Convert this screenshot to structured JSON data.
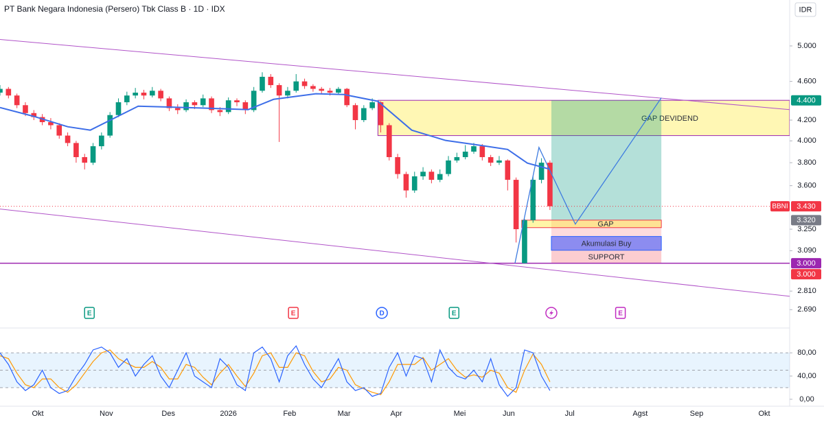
{
  "chart_data": {
    "type": "candlestick",
    "title": "PT Bank Negara Indonesia (Persero) Tbk Class B · 1D · IDX",
    "currency": "IDR",
    "log_scale": true,
    "xlim": [
      0,
      280
    ],
    "ylim": [
      2610,
      5570
    ],
    "xticks": [
      {
        "value": 13.4,
        "label": "Okt"
      },
      {
        "value": 37.7,
        "label": "Nov"
      },
      {
        "value": 59.7,
        "label": "Des"
      },
      {
        "value": 81,
        "label": "2026"
      },
      {
        "value": 102.7,
        "label": "Feb"
      },
      {
        "value": 122,
        "label": "Mar"
      },
      {
        "value": 140.5,
        "label": "Apr"
      },
      {
        "value": 163,
        "label": "Mei"
      },
      {
        "value": 180.4,
        "label": "Jun"
      },
      {
        "value": 202,
        "label": "Jul"
      },
      {
        "value": 227,
        "label": "Agst"
      },
      {
        "value": 247,
        "label": "Sep"
      },
      {
        "value": 271,
        "label": "Okt"
      }
    ],
    "yticks": [
      {
        "value": 5000,
        "label": "5.000"
      },
      {
        "value": 4600,
        "label": "4.600"
      },
      {
        "value": 4200,
        "label": "4.200"
      },
      {
        "value": 4000,
        "label": "4.000"
      },
      {
        "value": 3800,
        "label": "3.800"
      },
      {
        "value": 3600,
        "label": "3.600"
      },
      {
        "value": 3250,
        "label": "3.250"
      },
      {
        "value": 3090,
        "label": "3.090"
      },
      {
        "value": 2810,
        "label": "2.810"
      },
      {
        "value": 2690,
        "label": "2.690"
      }
    ],
    "candles": {
      "up_color": "#089981",
      "down_color": "#f23645",
      "x": [
        0,
        3,
        6,
        9,
        12,
        15,
        18,
        21,
        24,
        27,
        30,
        33,
        36,
        39,
        42,
        45,
        48,
        51,
        54,
        57,
        60,
        63,
        66,
        69,
        72,
        75,
        78,
        81,
        84,
        87,
        90,
        93,
        96,
        99,
        102,
        105,
        108,
        111,
        114,
        117,
        120,
        123,
        126,
        129,
        132,
        135,
        138,
        141,
        144,
        147,
        150,
        153,
        156,
        159,
        162,
        165,
        168,
        171,
        174,
        177,
        180,
        183,
        186,
        189,
        192,
        195
      ],
      "ohlc": [
        [
          4480,
          4560,
          4450,
          4520
        ],
        [
          4520,
          4540,
          4420,
          4450
        ],
        [
          4450,
          4470,
          4320,
          4350
        ],
        [
          4350,
          4380,
          4240,
          4270
        ],
        [
          4270,
          4300,
          4200,
          4230
        ],
        [
          4230,
          4260,
          4150,
          4180
        ],
        [
          4180,
          4220,
          4110,
          4150
        ],
        [
          4150,
          4170,
          4020,
          4050
        ],
        [
          4050,
          4080,
          3950,
          3980
        ],
        [
          3980,
          4000,
          3800,
          3850
        ],
        [
          3850,
          3880,
          3740,
          3800
        ],
        [
          3800,
          3980,
          3780,
          3950
        ],
        [
          3950,
          4080,
          3920,
          4050
        ],
        [
          4050,
          4280,
          4030,
          4250
        ],
        [
          4250,
          4420,
          4230,
          4380
        ],
        [
          4380,
          4490,
          4350,
          4450
        ],
        [
          4450,
          4530,
          4420,
          4480
        ],
        [
          4480,
          4510,
          4410,
          4450
        ],
        [
          4450,
          4540,
          4430,
          4500
        ],
        [
          4500,
          4520,
          4390,
          4420
        ],
        [
          4420,
          4440,
          4290,
          4320
        ],
        [
          4320,
          4360,
          4260,
          4300
        ],
        [
          4300,
          4410,
          4280,
          4380
        ],
        [
          4380,
          4400,
          4310,
          4350
        ],
        [
          4350,
          4460,
          4330,
          4420
        ],
        [
          4420,
          4440,
          4270,
          4300
        ],
        [
          4300,
          4330,
          4240,
          4280
        ],
        [
          4280,
          4430,
          4260,
          4400
        ],
        [
          4400,
          4420,
          4340,
          4380
        ],
        [
          4380,
          4400,
          4260,
          4300
        ],
        [
          4300,
          4540,
          4280,
          4500
        ],
        [
          4500,
          4700,
          4480,
          4650
        ],
        [
          4650,
          4680,
          4530,
          4560
        ],
        [
          4560,
          4580,
          3990,
          4450
        ],
        [
          4450,
          4540,
          4420,
          4500
        ],
        [
          4500,
          4680,
          4480,
          4600
        ],
        [
          4600,
          4630,
          4520,
          4550
        ],
        [
          4550,
          4570,
          4490,
          4520
        ],
        [
          4520,
          4540,
          4470,
          4500
        ],
        [
          4500,
          4530,
          4450,
          4480
        ],
        [
          4480,
          4540,
          4460,
          4520
        ],
        [
          4520,
          4530,
          4330,
          4350
        ],
        [
          4350,
          4370,
          4110,
          4200
        ],
        [
          4200,
          4350,
          4180,
          4320
        ],
        [
          4320,
          4420,
          4300,
          4380
        ],
        [
          4380,
          4390,
          4080,
          4150
        ],
        [
          4150,
          4170,
          3820,
          3850
        ],
        [
          3850,
          3880,
          3660,
          3700
        ],
        [
          3700,
          3720,
          3500,
          3560
        ],
        [
          3560,
          3720,
          3540,
          3680
        ],
        [
          3680,
          3760,
          3650,
          3720
        ],
        [
          3720,
          3740,
          3620,
          3650
        ],
        [
          3650,
          3740,
          3630,
          3700
        ],
        [
          3700,
          3860,
          3680,
          3820
        ],
        [
          3820,
          3890,
          3800,
          3850
        ],
        [
          3850,
          3960,
          3830,
          3900
        ],
        [
          3900,
          3980,
          3880,
          3950
        ],
        [
          3950,
          3970,
          3820,
          3850
        ],
        [
          3850,
          3870,
          3770,
          3800
        ],
        [
          3800,
          3860,
          3780,
          3820
        ],
        [
          3820,
          3830,
          3560,
          3650
        ],
        [
          3650,
          3670,
          3150,
          3250
        ],
        [
          3000,
          3330,
          3000,
          3320
        ],
        [
          3320,
          3680,
          3300,
          3650
        ],
        [
          3650,
          3840,
          3620,
          3800
        ],
        [
          3800,
          3820,
          3400,
          3430
        ]
      ]
    },
    "moving_average": {
      "color": "#3d6ee8",
      "x": [
        0,
        12,
        24,
        32,
        49,
        73,
        88,
        97,
        112,
        122,
        134,
        146,
        158,
        170,
        180,
        187,
        195
      ],
      "values": [
        4326,
        4237,
        4135,
        4102,
        4340,
        4320,
        4305,
        4410,
        4468,
        4460,
        4390,
        4102,
        4004,
        3959,
        3920,
        3796,
        3742
      ]
    },
    "trendlines": [
      {
        "color": "#b052c8",
        "x": [
          0,
          280
        ],
        "y": [
          5077,
          4305
        ]
      },
      {
        "color": "#b052c8",
        "x": [
          0,
          280
        ],
        "y": [
          3408,
          2776
        ]
      }
    ],
    "hlines": [
      {
        "value": 3000,
        "color": "#9c27b0",
        "width": 1.5
      },
      {
        "value": 3430,
        "color": "#f23645",
        "width": 1,
        "dashed": true
      }
    ],
    "zones": [
      {
        "label": "GAP DEVIDEND",
        "x": [
          134,
          280
        ],
        "y": [
          4050,
          4400
        ],
        "fill": "rgba(255,235,59,0.38)",
        "stroke": "#9c27b0"
      },
      {
        "x": [
          195.5,
          234.5
        ],
        "y": [
          3320,
          4400
        ],
        "fill": "rgba(8,153,129,0.3)",
        "stroke": "none"
      },
      {
        "x": [
          195.5,
          234.5
        ],
        "y": [
          3000,
          3320
        ],
        "fill": "rgba(242,54,69,0.18)",
        "stroke": "none"
      },
      {
        "label": "GAP",
        "x": [
          185,
          234.5
        ],
        "y": [
          3262,
          3320
        ],
        "fill": "rgba(255,235,59,0.45)",
        "stroke": "#f23645"
      },
      {
        "label": "Akumulasi Buy",
        "x": [
          195.5,
          234.5
        ],
        "y": [
          3093,
          3195
        ],
        "fill": "#8c8cf0",
        "stroke": "#2962ff"
      },
      {
        "label": "SUPPORT",
        "x": [
          195.5,
          234.5
        ],
        "y": [
          3000,
          3093
        ],
        "fill": "rgba(242,54,69,0.08)",
        "stroke": "none"
      }
    ],
    "projection": {
      "color": "#3d7be0",
      "x": [
        182.6,
        191.1,
        204,
        234.5
      ],
      "y": [
        3000,
        3939,
        3289,
        4426
      ]
    },
    "events": [
      {
        "x": 31.7,
        "label": "E",
        "color": "#089981",
        "shape": "square"
      },
      {
        "x": 104,
        "label": "E",
        "color": "#f23645",
        "shape": "square"
      },
      {
        "x": 135.4,
        "label": "D",
        "color": "#2962ff",
        "shape": "circle"
      },
      {
        "x": 161,
        "label": "E",
        "color": "#089981",
        "shape": "square"
      },
      {
        "x": 195.5,
        "color": "#c02ac0",
        "shape": "circle"
      },
      {
        "x": 220,
        "label": "E",
        "color": "#c02ac0",
        "shape": "square"
      }
    ],
    "price_labels": [
      {
        "value": 4400,
        "label": "4.400",
        "color": "#089981"
      },
      {
        "value": 3430,
        "label": "3.430",
        "color": "#f23645",
        "tag": "BBNI"
      },
      {
        "value": 3320,
        "label": "3.320",
        "color": "#787b86"
      },
      {
        "value": 3000,
        "label": "3.000",
        "color": "#9c27b0"
      },
      {
        "value": 3000,
        "label": "3.000",
        "color": "#f23645"
      }
    ],
    "oscillator": {
      "ylim": [
        -12,
        111
      ],
      "yticks": [
        {
          "value": 0,
          "label": "0,00"
        },
        {
          "value": 40,
          "label": "40,00"
        },
        {
          "value": 80,
          "label": "80,00"
        }
      ],
      "band": [
        20,
        80
      ],
      "levels": [
        20,
        50,
        80
      ],
      "k_color": "#2962ff",
      "d_color": "#ff9800",
      "k": [
        80,
        60,
        30,
        15,
        25,
        50,
        20,
        10,
        15,
        40,
        60,
        85,
        90,
        80,
        55,
        70,
        40,
        60,
        75,
        40,
        20,
        50,
        80,
        40,
        30,
        20,
        70,
        55,
        25,
        15,
        80,
        90,
        70,
        30,
        75,
        92,
        60,
        35,
        20,
        45,
        70,
        30,
        15,
        20,
        5,
        10,
        55,
        80,
        40,
        75,
        70,
        30,
        85,
        55,
        40,
        35,
        50,
        30,
        70,
        25,
        5,
        20,
        85,
        80,
        40,
        15
      ],
      "d": [
        75,
        70,
        45,
        25,
        20,
        35,
        35,
        20,
        12,
        25,
        45,
        65,
        80,
        85,
        70,
        62,
        55,
        55,
        65,
        55,
        35,
        35,
        60,
        55,
        38,
        25,
        45,
        60,
        40,
        22,
        45,
        75,
        80,
        55,
        55,
        80,
        75,
        48,
        30,
        35,
        55,
        50,
        25,
        18,
        12,
        8,
        30,
        60,
        60,
        60,
        72,
        50,
        60,
        70,
        50,
        38,
        42,
        38,
        50,
        45,
        20,
        12,
        50,
        78,
        60,
        30
      ]
    }
  }
}
